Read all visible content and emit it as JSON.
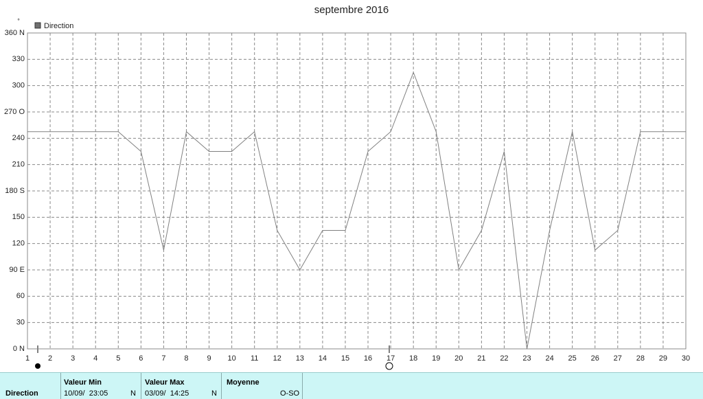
{
  "chart_data": {
    "type": "line",
    "title": "septembre 2016",
    "y_label": "°",
    "x": [
      1,
      2,
      3,
      4,
      5,
      6,
      7,
      8,
      9,
      10,
      11,
      12,
      13,
      14,
      15,
      16,
      17,
      18,
      19,
      20,
      21,
      22,
      23,
      24,
      25,
      26,
      27,
      28,
      29,
      30
    ],
    "series": [
      {
        "name": "Direction",
        "color": "#808080",
        "values": [
          247.5,
          247.5,
          247.5,
          247.5,
          247.5,
          225,
          112.5,
          247.5,
          225,
          225,
          247.5,
          135,
          90,
          135,
          135,
          225,
          247.5,
          315,
          247.5,
          90,
          135,
          225,
          0,
          135,
          247.5,
          112.5,
          135,
          247.5,
          247.5,
          247.5
        ]
      }
    ],
    "xlim": [
      1,
      30
    ],
    "xticks": [
      1,
      2,
      3,
      4,
      5,
      6,
      7,
      8,
      9,
      10,
      11,
      12,
      13,
      14,
      15,
      16,
      17,
      18,
      19,
      20,
      21,
      22,
      23,
      24,
      25,
      26,
      27,
      28,
      29,
      30
    ],
    "ylim": [
      0,
      360
    ],
    "yticks": [
      {
        "value": 0,
        "label": "0  N"
      },
      30,
      60,
      {
        "value": 90,
        "label": "90  E"
      },
      120,
      150,
      {
        "value": 180,
        "label": "180 S"
      },
      210,
      240,
      {
        "value": 270,
        "label": "270 O"
      },
      300,
      330,
      {
        "value": 360,
        "label": "360 N"
      }
    ],
    "grid": true
  },
  "summary": {
    "row_label": "Direction",
    "min": {
      "header": "Valeur Min",
      "time": "10/09/  23:05",
      "dir": "N"
    },
    "max": {
      "header": "Valeur Max",
      "time": "03/09/  14:25",
      "dir": "N"
    },
    "mean": {
      "header": "Moyenne",
      "dir": "O-SO"
    }
  }
}
